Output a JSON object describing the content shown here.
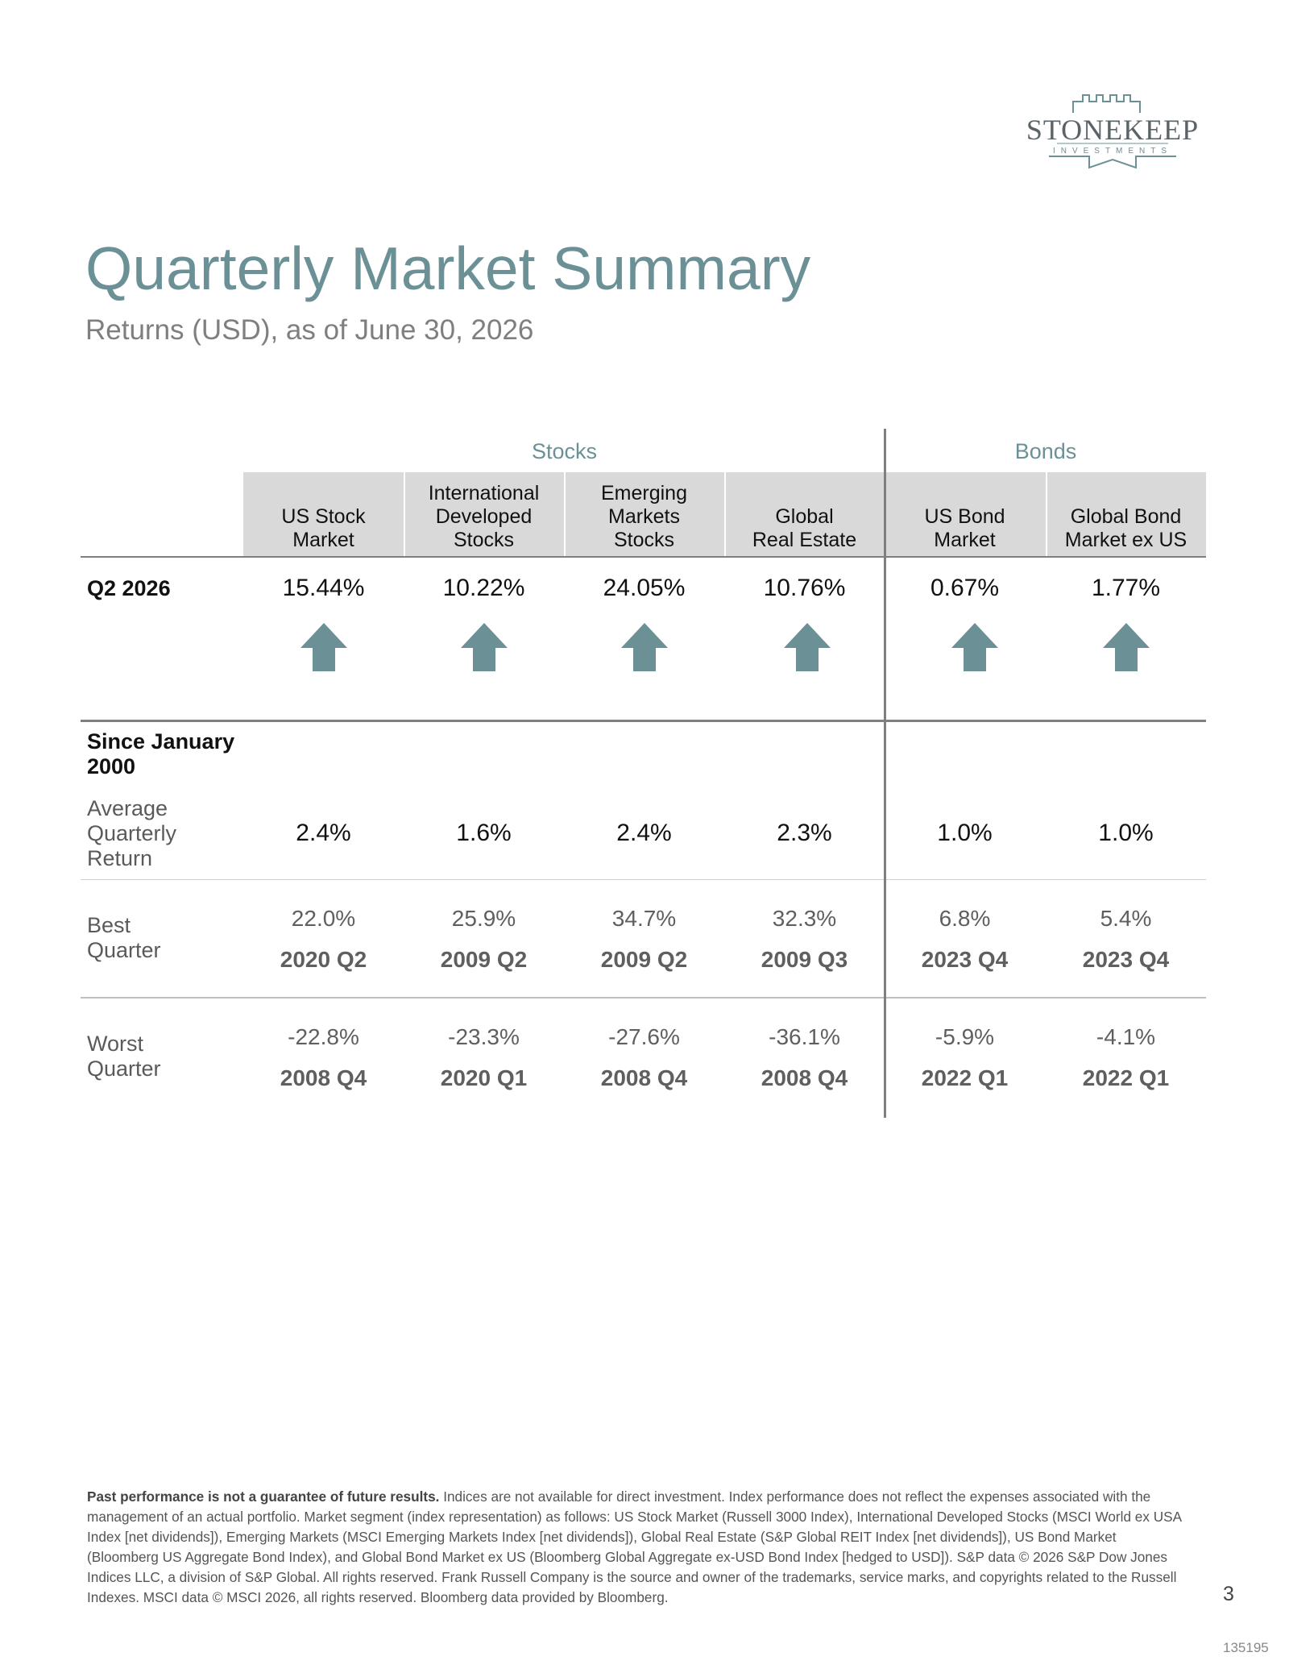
{
  "logo": {
    "name": "STONEKEEP",
    "sub": "INVESTMENTS",
    "color": "#6b9196"
  },
  "title": "Quarterly Market Summary",
  "subtitle": "Returns (USD), as of June 30, 2026",
  "groups": {
    "stocks": "Stocks",
    "bonds": "Bonds"
  },
  "columns": [
    "US Stock Market",
    "International Developed Stocks",
    "Emerging Markets Stocks",
    "Global Real Estate",
    "US Bond Market",
    "Global Bond Market ex US"
  ],
  "columns_lines": [
    [
      "US Stock",
      "Market"
    ],
    [
      "International",
      "Developed",
      "Stocks"
    ],
    [
      "Emerging",
      "Markets",
      "Stocks"
    ],
    [
      "Global",
      "Real Estate"
    ],
    [
      "US Bond",
      "Market"
    ],
    [
      "Global Bond",
      "Market ex US"
    ]
  ],
  "q2": {
    "label": "Q2 2026",
    "values": [
      "15.44%",
      "10.22%",
      "24.05%",
      "10.76%",
      "0.67%",
      "1.77%"
    ],
    "arrow_icon": "arrow-up-icon",
    "arrow_color": "#6b9196"
  },
  "since": {
    "label": "Since January 2000",
    "avg_label": "Average Quarterly Return",
    "avg_values": [
      "2.4%",
      "1.6%",
      "2.4%",
      "2.3%",
      "1.0%",
      "1.0%"
    ],
    "best_label": "Best Quarter",
    "best_values": [
      "22.0%",
      "25.9%",
      "34.7%",
      "32.3%",
      "6.8%",
      "5.4%"
    ],
    "best_quarters": [
      "2020 Q2",
      "2009 Q2",
      "2009 Q2",
      "2009 Q3",
      "2023 Q4",
      "2023 Q4"
    ],
    "worst_label": "Worst Quarter",
    "worst_values": [
      "-22.8%",
      "-23.3%",
      "-27.6%",
      "-36.1%",
      "-5.9%",
      "-4.1%"
    ],
    "worst_quarters": [
      "2008 Q4",
      "2020 Q1",
      "2008 Q4",
      "2008 Q4",
      "2022 Q1",
      "2022 Q1"
    ]
  },
  "disclaimer": {
    "lead": "Past performance is not a guarantee of future results.",
    "body": " Indices are not available for direct investment. Index performance does not reflect the expenses associated with the management of an actual portfolio. Market segment (index representation) as follows: US Stock Market (Russell 3000 Index), International Developed Stocks (MSCI World ex USA Index [net dividends]), Emerging Markets (MSCI Emerging Markets Index [net dividends]), Global Real Estate (S&P Global REIT Index [net dividends]), US Bond Market (Bloomberg US Aggregate Bond Index), and Global Bond Market ex US (Bloomberg Global Aggregate ex-USD Bond Index [hedged to USD]). S&P data © 2026 S&P Dow Jones Indices LLC, a division of S&P Global. All rights reserved. Frank Russell Company is the source and owner of the trademarks, service marks, and copyrights related to the Russell Indexes. MSCI data © MSCI 2026, all rights reserved. Bloomberg data provided by Bloomberg."
  },
  "page_number": "3",
  "doc_id": "135195"
}
